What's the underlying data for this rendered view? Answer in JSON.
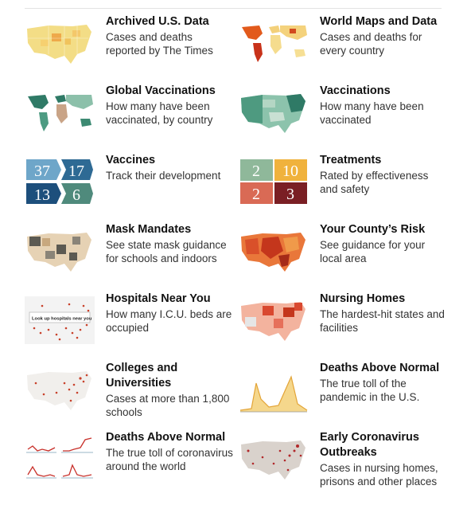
{
  "cards": [
    {
      "title": "Archived U.S. Data",
      "desc": "Cases and deaths reported by The Times",
      "thumb": "us-cases-map"
    },
    {
      "title": "World Maps and Data",
      "desc": "Cases and deaths for every country",
      "thumb": "world-cases-map"
    },
    {
      "title": "Global Vaccinations",
      "desc": "How many have been vaccinated, by country",
      "thumb": "world-vaccination-map"
    },
    {
      "title": "Vaccinations",
      "desc": "How many have been vaccinated",
      "thumb": "us-vaccination-map"
    },
    {
      "title": "Vaccines",
      "desc": "Track their development",
      "thumb": "vaccine-tracker-tiles"
    },
    {
      "title": "Treatments",
      "desc": "Rated by effectiveness and safety",
      "thumb": "treatment-tiles"
    },
    {
      "title": "Mask Mandates",
      "desc": "See state mask guidance for schools and indoors",
      "thumb": "mask-mandate-map"
    },
    {
      "title": "Your County’s Risk",
      "desc": "See guidance for your local area",
      "thumb": "county-risk-map"
    },
    {
      "title": "Hospitals Near You",
      "desc": "How many I.C.U. beds are occupied",
      "thumb": "hospitals-map"
    },
    {
      "title": "Nursing Homes",
      "desc": "The hardest-hit states and facilities",
      "thumb": "nursing-homes-map"
    },
    {
      "title": "Colleges and Universities",
      "desc": "Cases at more than 1,800 schools",
      "thumb": "colleges-map"
    },
    {
      "title": "Deaths Above Normal",
      "desc": "The true toll of the pandemic in the U.S.",
      "thumb": "excess-deaths-chart"
    },
    {
      "title": "Deaths Above Normal",
      "desc": "The true toll of coronavirus around the world",
      "thumb": "world-excess-deaths-charts"
    },
    {
      "title": "Early Coronavirus Outbreaks",
      "desc": "Cases in nursing homes, prisons and other places",
      "thumb": "early-outbreaks-map"
    }
  ],
  "vaccine_tiles": {
    "a": "37",
    "b": "17",
    "c": "13",
    "d": "6"
  },
  "treatment_tiles": {
    "a": "2",
    "b": "10",
    "c": "2",
    "d": "3"
  },
  "hospital_search": {
    "label": "Look up hospitals near you"
  },
  "colors": {
    "cases_yellow": "#f3d77a",
    "cases_orange": "#e98a2f",
    "vaccine_green": "#3b8a73",
    "vaccine_blue": "#2e6a94",
    "treatment_gold": "#f0b23d",
    "treatment_red": "#7a1f24",
    "risk_red": "#c4361c"
  }
}
